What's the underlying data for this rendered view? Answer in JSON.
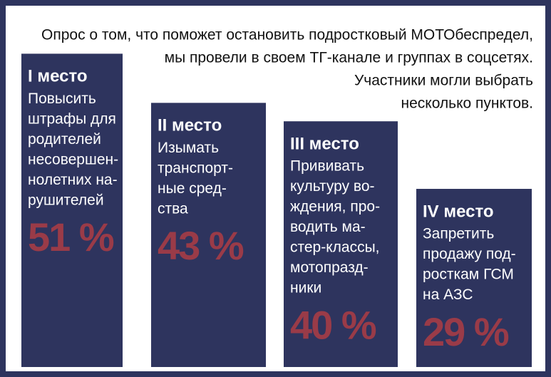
{
  "chart_data": {
    "type": "bar",
    "title": [
      "Опрос о том, что поможет остановить подростковый МОТОбеспредел,",
      "мы провели в своем ТГ-канале и группах в соцсетях.",
      "Участники могли выбрать",
      "несколько пунктов."
    ],
    "categories": [
      "I место",
      "II место",
      "III место",
      "IV место"
    ],
    "descriptions": [
      [
        "Повысить",
        "штрафы для",
        "родителей",
        "несовершен-",
        "нолетних на-",
        "рушителей"
      ],
      [
        "Изымать",
        "транспорт-",
        "ные сред-",
        "ства"
      ],
      [
        "Прививать",
        "культуру во-",
        "ждения, про-",
        "водить ма-",
        "стер-классы,",
        "мотопразд-",
        "ники"
      ],
      [
        "Запретить",
        "продажу под-",
        "росткам ГСМ",
        "на АЗС"
      ]
    ],
    "values": [
      51,
      43,
      40,
      29
    ],
    "value_labels": [
      "51 %",
      "43 %",
      "40 %",
      "29 %"
    ],
    "color": "#2e345e",
    "value_label_color": "#9a3b48"
  }
}
